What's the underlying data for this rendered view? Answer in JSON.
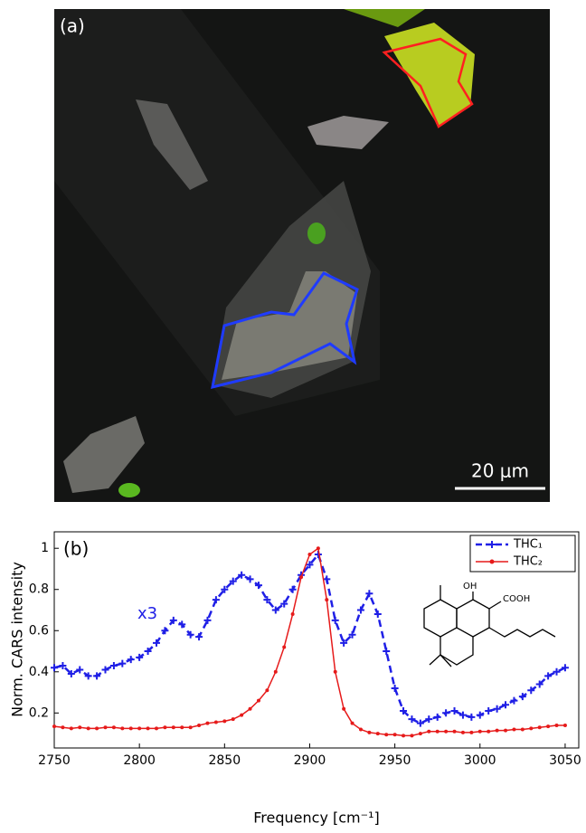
{
  "panel_a": {
    "label": "(a)",
    "scale_bar": "20 μm"
  },
  "chart_data": {
    "type": "line",
    "panel_label": "(b)",
    "xlabel": "Frequency [cm⁻¹]",
    "ylabel": "Norm. CARS intensity",
    "annotations": [
      "x3"
    ],
    "structure_labels": [
      "OH",
      "COOH"
    ],
    "xlim": [
      2750,
      3058
    ],
    "ylim": [
      0.03,
      1.08
    ],
    "xticks": [
      2750,
      2800,
      2850,
      2900,
      2950,
      3000,
      3050
    ],
    "yticks": [
      0.2,
      0.4,
      0.6,
      0.8,
      1
    ],
    "legend": "upper right",
    "x": [
      2750,
      2755,
      2760,
      2765,
      2770,
      2775,
      2780,
      2785,
      2790,
      2795,
      2800,
      2805,
      2810,
      2815,
      2820,
      2825,
      2830,
      2835,
      2840,
      2845,
      2850,
      2855,
      2860,
      2865,
      2870,
      2875,
      2880,
      2885,
      2890,
      2895,
      2900,
      2905,
      2910,
      2915,
      2920,
      2925,
      2930,
      2935,
      2940,
      2945,
      2950,
      2955,
      2960,
      2965,
      2970,
      2975,
      2980,
      2985,
      2990,
      2995,
      3000,
      3005,
      3010,
      3015,
      3020,
      3025,
      3030,
      3035,
      3040,
      3045,
      3050
    ],
    "series": [
      {
        "name": "THC₁",
        "color": "#1f1fe6",
        "marker": "plus",
        "dashed": true,
        "values": [
          0.42,
          0.43,
          0.39,
          0.41,
          0.38,
          0.38,
          0.41,
          0.43,
          0.44,
          0.46,
          0.47,
          0.5,
          0.54,
          0.6,
          0.65,
          0.63,
          0.58,
          0.57,
          0.65,
          0.75,
          0.8,
          0.84,
          0.87,
          0.85,
          0.82,
          0.75,
          0.7,
          0.73,
          0.8,
          0.87,
          0.92,
          0.97,
          0.85,
          0.65,
          0.54,
          0.58,
          0.7,
          0.78,
          0.68,
          0.5,
          0.32,
          0.21,
          0.17,
          0.15,
          0.17,
          0.18,
          0.2,
          0.21,
          0.19,
          0.18,
          0.19,
          0.21,
          0.22,
          0.24,
          0.26,
          0.28,
          0.31,
          0.34,
          0.38,
          0.4,
          0.42
        ]
      },
      {
        "name": "THC₂",
        "color": "#e61a1a",
        "marker": "dot",
        "dashed": false,
        "values": [
          0.135,
          0.13,
          0.125,
          0.13,
          0.125,
          0.125,
          0.13,
          0.13,
          0.125,
          0.125,
          0.125,
          0.125,
          0.125,
          0.13,
          0.13,
          0.13,
          0.13,
          0.14,
          0.15,
          0.155,
          0.16,
          0.17,
          0.19,
          0.22,
          0.26,
          0.31,
          0.4,
          0.52,
          0.68,
          0.86,
          0.97,
          1.0,
          0.75,
          0.4,
          0.22,
          0.15,
          0.12,
          0.105,
          0.1,
          0.095,
          0.095,
          0.09,
          0.09,
          0.1,
          0.11,
          0.11,
          0.11,
          0.11,
          0.105,
          0.105,
          0.11,
          0.11,
          0.115,
          0.115,
          0.12,
          0.12,
          0.125,
          0.13,
          0.135,
          0.14,
          0.14
        ]
      }
    ]
  }
}
